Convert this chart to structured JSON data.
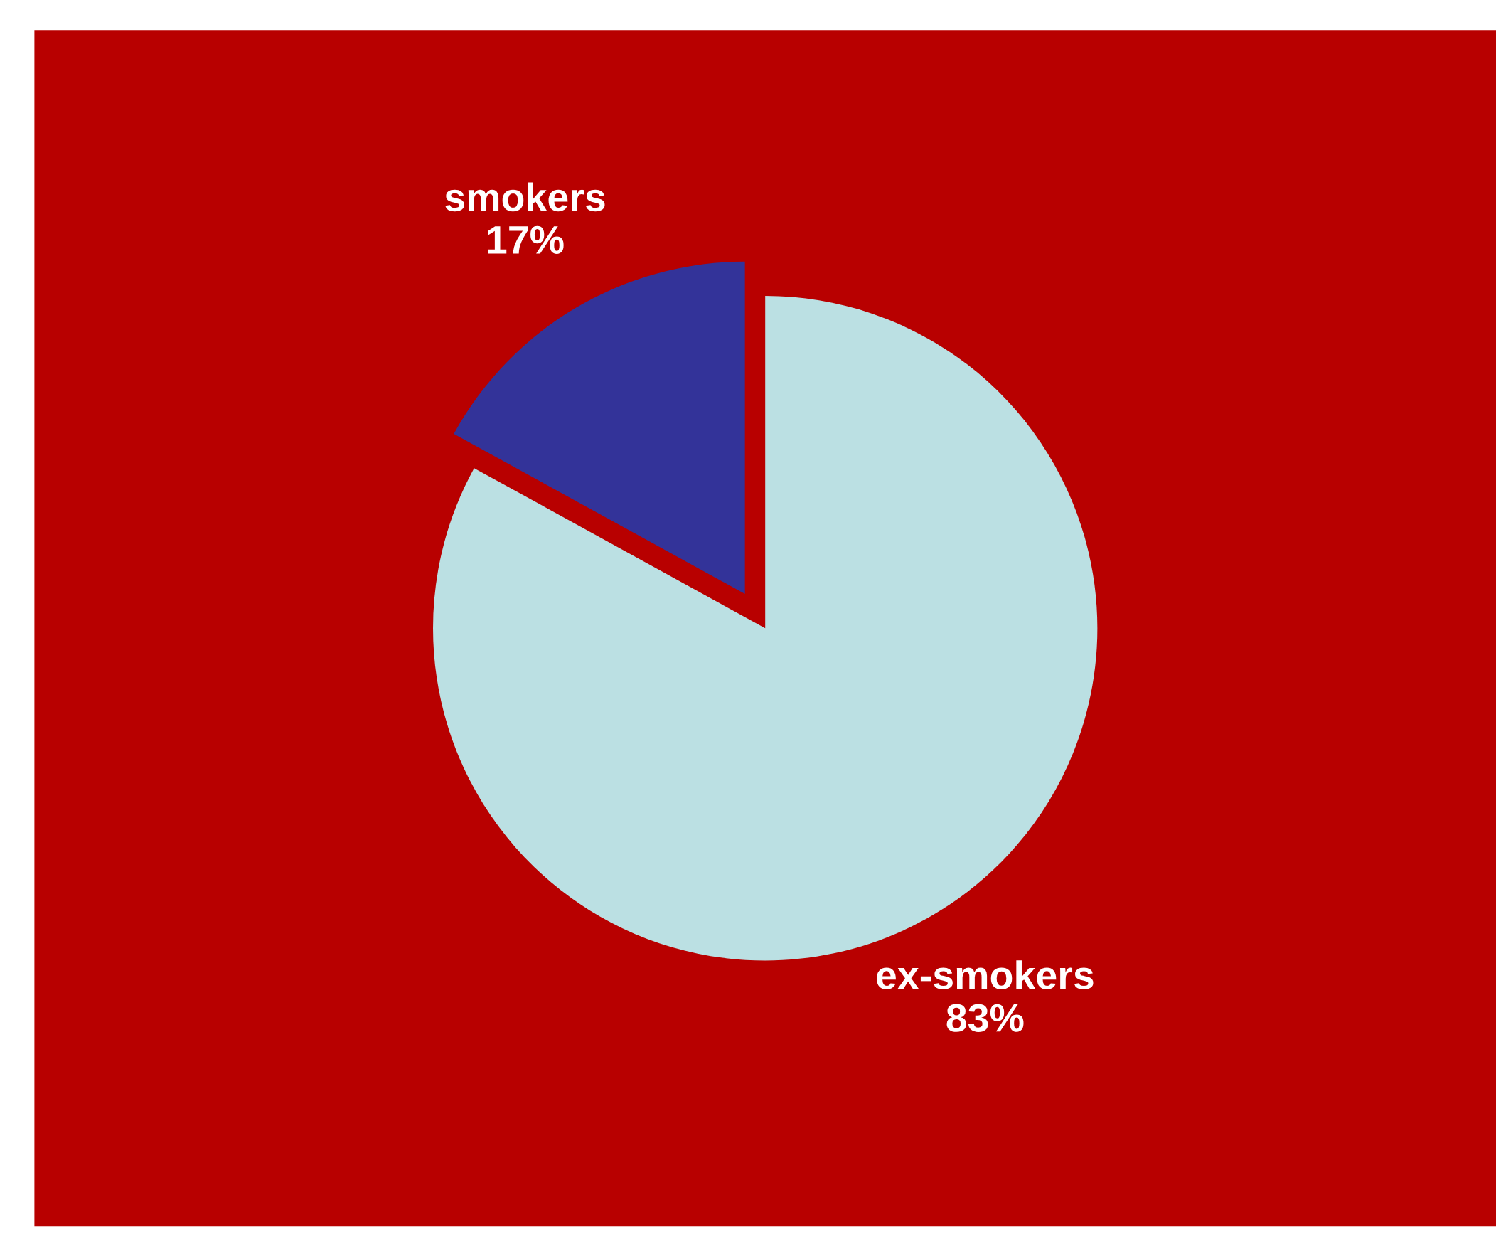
{
  "chart_data": {
    "type": "pie",
    "categories": [
      "smokers",
      "ex-smokers"
    ],
    "values": [
      17,
      83
    ],
    "value_labels": [
      "17%",
      "83%"
    ],
    "colors": [
      "#333399",
      "#bbe0e3"
    ]
  }
}
